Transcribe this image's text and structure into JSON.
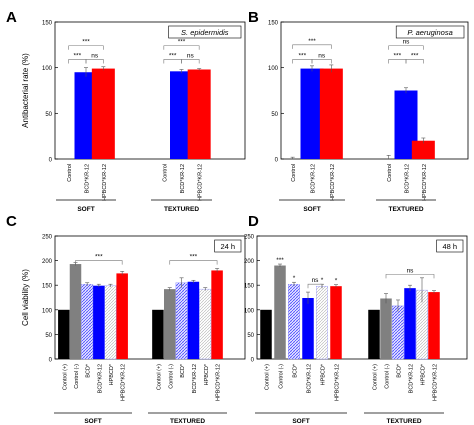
{
  "chart_data": [
    {
      "panel": "A",
      "type": "bar",
      "inset_label": "S. epidermidis",
      "ylabel": "Antibacterial rate (%)",
      "ylim": [
        0,
        150
      ],
      "yticks": [
        0,
        50,
        100,
        150
      ],
      "groups": [
        {
          "name": "SOFT",
          "categories": [
            "Control",
            "BCD*KR-12",
            "HPBCD*KR-12"
          ],
          "values": [
            0,
            95,
            99
          ],
          "errors": [
            0,
            5,
            2
          ],
          "colors": [
            "#ffffff",
            "#0000ff",
            "#ff0000"
          ]
        },
        {
          "name": "TEXTURED",
          "categories": [
            "Control",
            "BCD*KR-12",
            "HPBCD*KR-12"
          ],
          "values": [
            0,
            96,
            98
          ],
          "errors": [
            0,
            2,
            1
          ],
          "colors": [
            "#ffffff",
            "#0000ff",
            "#ff0000"
          ]
        }
      ],
      "significance": [
        {
          "group": 0,
          "from": 0,
          "to": 2,
          "label": "***",
          "level": 124
        },
        {
          "group": 0,
          "from": 0,
          "to": 1,
          "label": "***",
          "level": 109
        },
        {
          "group": 0,
          "from": 1,
          "to": 2,
          "label": "ns",
          "level": 109
        },
        {
          "group": 1,
          "from": 0,
          "to": 2,
          "label": "***",
          "level": 124
        },
        {
          "group": 1,
          "from": 0,
          "to": 1,
          "label": "***",
          "level": 109
        },
        {
          "group": 1,
          "from": 1,
          "to": 2,
          "label": "ns",
          "level": 109
        }
      ]
    },
    {
      "panel": "B",
      "type": "bar",
      "inset_label": "P. aeruginosa",
      "ylabel": "",
      "ylim": [
        0,
        150
      ],
      "yticks": [
        0,
        50,
        100,
        150
      ],
      "groups": [
        {
          "name": "SOFT",
          "categories": [
            "Control",
            "BCD*KR-12",
            "HPBCD*KR-12"
          ],
          "values": [
            0,
            99,
            99
          ],
          "errors": [
            2,
            3,
            4
          ],
          "colors": [
            "#ffffff",
            "#0000ff",
            "#ff0000"
          ]
        },
        {
          "name": "TEXTURED",
          "categories": [
            "Control",
            "BCD*KR-12",
            "HPBCD*KR-12"
          ],
          "values": [
            0,
            75,
            20
          ],
          "errors": [
            4,
            3,
            3
          ],
          "colors": [
            "#ffffff",
            "#0000ff",
            "#ff0000"
          ]
        }
      ],
      "significance": [
        {
          "group": 0,
          "from": 0,
          "to": 2,
          "label": "***",
          "level": 125
        },
        {
          "group": 0,
          "from": 0,
          "to": 1,
          "label": "***",
          "level": 109
        },
        {
          "group": 0,
          "from": 1,
          "to": 2,
          "label": "ns",
          "level": 109
        },
        {
          "group": 1,
          "from": 0,
          "to": 2,
          "label": "ns",
          "level": 124
        },
        {
          "group": 1,
          "from": 0,
          "to": 1,
          "label": "***",
          "level": 109
        },
        {
          "group": 1,
          "from": 1,
          "to": 2,
          "label": "***",
          "level": 109
        }
      ]
    },
    {
      "panel": "C",
      "type": "bar",
      "inset_label": "24 h",
      "ylabel": "Cell viability (%)",
      "ylim": [
        0,
        250
      ],
      "yticks": [
        0,
        50,
        100,
        150,
        200,
        250
      ],
      "groups": [
        {
          "name": "SOFT",
          "categories": [
            "Control (+)",
            "Control (-)",
            "BCD*",
            "BCD*KR-12",
            "HPBCD*",
            "HPBCD*KR-12"
          ],
          "values": [
            100,
            193,
            152,
            149,
            149,
            174
          ],
          "errors": [
            0,
            3,
            3,
            3,
            3,
            4
          ],
          "colors": [
            "#000000",
            "#808080",
            "#aaaaff",
            "#0000ff",
            "#dddddd",
            "#ff0000"
          ],
          "patterns": [
            "solid",
            "solid",
            "hatch",
            "solid",
            "hatch-light",
            "solid"
          ]
        },
        {
          "name": "TEXTURED",
          "categories": [
            "Control (+)",
            "Control (-)",
            "BCD*",
            "BCD*KR-12",
            "HPBCD*",
            "HPBCD*KR-12"
          ],
          "values": [
            100,
            142,
            155,
            157,
            142,
            180
          ],
          "errors": [
            0,
            3,
            10,
            3,
            3,
            4
          ],
          "colors": [
            "#000000",
            "#808080",
            "#aaaaff",
            "#0000ff",
            "#dddddd",
            "#ff0000"
          ],
          "patterns": [
            "solid",
            "solid",
            "hatch",
            "solid",
            "hatch-light",
            "solid"
          ]
        }
      ],
      "significance": [
        {
          "group": 0,
          "from": 1,
          "to": 5,
          "label": "***",
          "level": 200
        },
        {
          "group": 1,
          "from": 1,
          "to": 5,
          "label": "***",
          "level": 200
        }
      ]
    },
    {
      "panel": "D",
      "type": "bar",
      "inset_label": "48 h",
      "ylabel": "",
      "ylim": [
        0,
        250
      ],
      "yticks": [
        0,
        50,
        100,
        150,
        200,
        250
      ],
      "groups": [
        {
          "name": "SOFT",
          "categories": [
            "Control (+)",
            "Control (-)",
            "BCD*",
            "BCD*KR-12",
            "HPBCD*",
            "HPBCD*KR-12"
          ],
          "values": [
            100,
            190,
            152,
            124,
            148,
            148
          ],
          "errors": [
            0,
            3,
            4,
            12,
            4,
            3
          ],
          "colors": [
            "#000000",
            "#808080",
            "#aaaaff",
            "#0000ff",
            "#dddddd",
            "#ff0000"
          ],
          "patterns": [
            "solid",
            "solid",
            "hatch",
            "solid",
            "hatch-light",
            "solid"
          ],
          "bar_labels": [
            "",
            "***",
            "*",
            "",
            "*",
            "*"
          ]
        },
        {
          "name": "TEXTURED",
          "categories": [
            "Control (+)",
            "Control (-)",
            "BCD*",
            "BCD*KR-12",
            "HPBCD*",
            "HPBCD*KR-12"
          ],
          "values": [
            100,
            123,
            108,
            144,
            140,
            136
          ],
          "errors": [
            0,
            10,
            12,
            6,
            25,
            3
          ],
          "colors": [
            "#000000",
            "#808080",
            "#aaaaff",
            "#0000ff",
            "#dddddd",
            "#ff0000"
          ],
          "patterns": [
            "solid",
            "solid",
            "hatch",
            "solid",
            "hatch-light",
            "solid"
          ]
        }
      ],
      "significance": [
        {
          "group": 0,
          "from": 3,
          "to": 4,
          "label": "ns",
          "level": 152
        },
        {
          "group": 1,
          "from": 1,
          "to": 5,
          "label": "ns",
          "level": 172
        }
      ]
    }
  ]
}
